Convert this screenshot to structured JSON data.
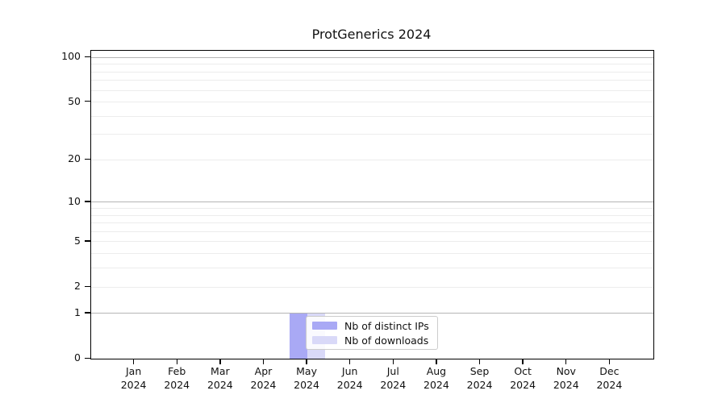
{
  "chart_data": {
    "type": "bar",
    "title": "ProtGenerics 2024",
    "categories": [
      "Jan",
      "Feb",
      "Mar",
      "Apr",
      "May",
      "Jun",
      "Jul",
      "Aug",
      "Sep",
      "Oct",
      "Nov",
      "Dec"
    ],
    "category_year": "2024",
    "series": [
      {
        "name": "Nb of distinct IPs",
        "color": "#a9a9f5",
        "values": [
          0,
          0,
          0,
          0,
          1,
          0,
          0,
          0,
          0,
          0,
          0,
          0
        ]
      },
      {
        "name": "Nb of downloads",
        "color": "#d9d9f8",
        "values": [
          0,
          0,
          0,
          0,
          1,
          0,
          0,
          0,
          0,
          0,
          0,
          0
        ]
      }
    ],
    "yticks": [
      0,
      1,
      2,
      5,
      10,
      20,
      50,
      100
    ],
    "ylim": [
      0,
      110
    ],
    "yscale": "log1p",
    "xlabel": "",
    "ylabel": "",
    "grid": "horizontal",
    "gridlines_minor": [
      2,
      3,
      4,
      5,
      6,
      7,
      8,
      9,
      20,
      30,
      40,
      50,
      60,
      70,
      80,
      90
    ],
    "gridlines_major": [
      1,
      10,
      100
    ],
    "legend_position": "inside-bottom-center",
    "colors": {
      "bar_distinct_ips": "#a9a9f5",
      "bar_downloads": "#d9d9f8",
      "grid_minor": "#ececec",
      "grid_major": "#b5b5b5",
      "spine": "#000000",
      "text": "#111111",
      "legend_border": "#cccccc"
    }
  }
}
